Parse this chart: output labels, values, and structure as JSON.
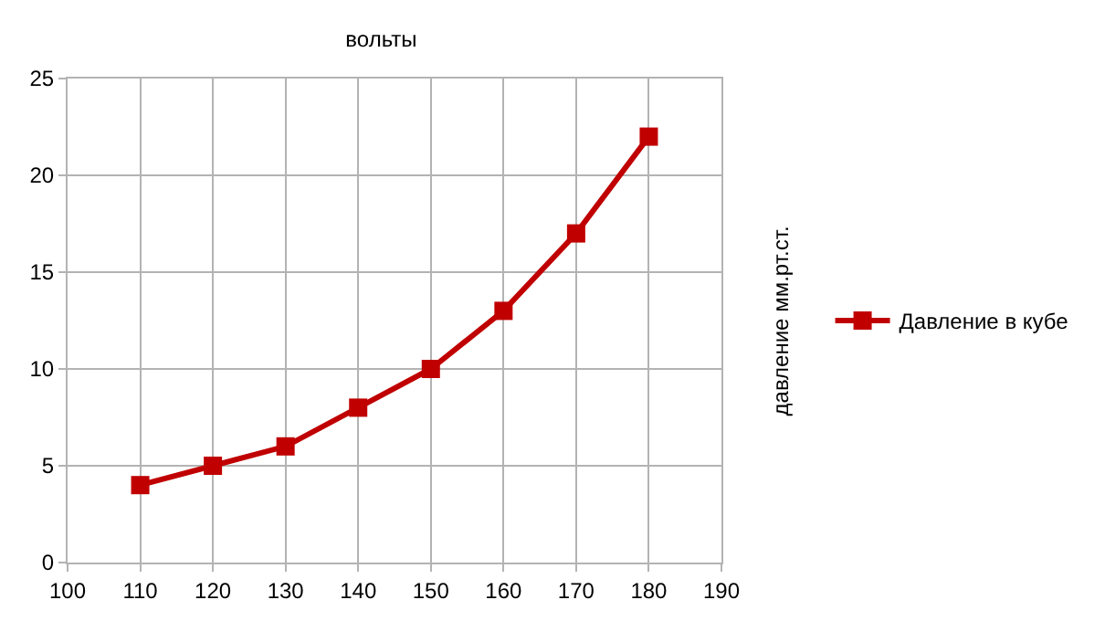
{
  "chart_data": {
    "type": "line",
    "title": "вольты",
    "ylabel": "давление мм.рт.ст.",
    "x": [
      110,
      120,
      130,
      140,
      150,
      160,
      170,
      180
    ],
    "series": [
      {
        "name": "Давление в кубе",
        "color": "#c00000",
        "values": [
          4,
          5,
          6,
          8,
          10,
          13,
          17,
          22
        ]
      }
    ],
    "xlim": [
      100,
      190
    ],
    "xticks": [
      100,
      110,
      120,
      130,
      140,
      150,
      160,
      170,
      180,
      190
    ],
    "ylim": [
      0,
      25
    ],
    "yticks": [
      0,
      5,
      10,
      15,
      20,
      25
    ],
    "grid": true,
    "legend": "right",
    "marker": "square",
    "line_style": "solid"
  }
}
